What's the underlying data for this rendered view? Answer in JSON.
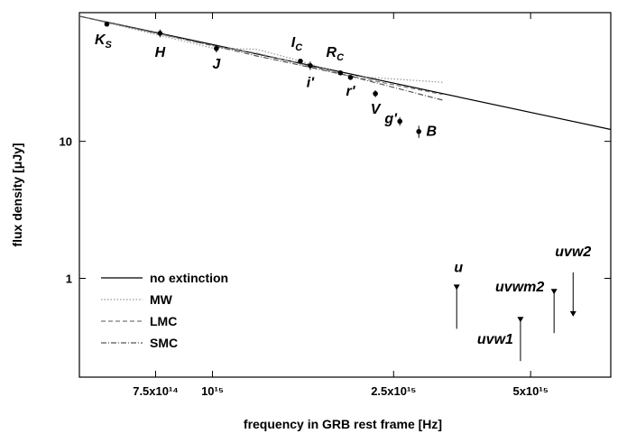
{
  "chart_data": {
    "type": "scatter",
    "xlabel": "frequency in GRB rest frame [Hz]",
    "ylabel": "flux density [μJy]",
    "xscale": "log",
    "yscale": "log",
    "xlim": [
      510000000000000.0,
      7500000000000000.0
    ],
    "ylim": [
      0.19,
      87
    ],
    "xticks": [
      {
        "value": 750000000000000.0,
        "label": "7.5x10¹⁴"
      },
      {
        "value": 1000000000000000.0,
        "label": "10¹⁵"
      },
      {
        "value": 2500000000000000.0,
        "label": "2.5x10¹⁵"
      },
      {
        "value": 5000000000000000.0,
        "label": "5x10¹⁵"
      }
    ],
    "yticks": [
      1,
      10
    ],
    "legend": "lower left",
    "points": {
      "labels": [
        {
          "text": "K",
          "sub": "S"
        },
        {
          "text": "H"
        },
        {
          "text": "J"
        },
        {
          "text": "I",
          "sub": "C"
        },
        {
          "text": "i'"
        },
        {
          "text": "R",
          "sub": "C"
        },
        {
          "text": "r'"
        },
        {
          "text": "V"
        },
        {
          "text": "g'"
        },
        {
          "text": "B"
        }
      ],
      "x": [
        586000000000000.0,
        767000000000000.0,
        1020000000000000.0,
        1560000000000000.0,
        1640000000000000.0,
        1910000000000000.0,
        2010000000000000.0,
        2280000000000000.0,
        2580000000000000.0,
        2840000000000000.0
      ],
      "values": [
        71.7,
        61.5,
        47.6,
        38.5,
        35.7,
        31.6,
        29.3,
        22.3,
        14.0,
        11.8
      ],
      "errors": [
        2.5,
        4,
        3,
        1.5,
        2.5,
        1,
        1.2,
        1.3,
        1,
        1.2
      ],
      "color": "#000000"
    },
    "upper_limits": {
      "labels": [
        "u",
        "uvw1",
        "uvwm2",
        "uvw2"
      ],
      "x": [
        3440000000000000.0,
        4750000000000000.0,
        5630000000000000.0,
        6200000000000000.0
      ],
      "values": [
        0.86,
        0.5,
        0.8,
        0.55
      ],
      "color": "#000000"
    },
    "series": [
      {
        "name": "no extinction",
        "color": "#000000",
        "dash": "",
        "x": [
          510000000000000.0,
          7500000000000000.0
        ],
        "values": [
          82,
          12.2
        ]
      },
      {
        "name": "MW",
        "color": "#999999",
        "dash": "1.5,2",
        "x": [
          510000000000000.0,
          1000000000000000.0,
          1250000000000000.0,
          1500000000000000.0,
          2000000000000000.0,
          3200000000000000.0
        ],
        "values": [
          82,
          48,
          47,
          40,
          30,
          27
        ]
      },
      {
        "name": "LMC",
        "color": "#777777",
        "dash": "5,3",
        "x": [
          510000000000000.0,
          1000000000000000.0,
          1250000000000000.0,
          1500000000000000.0,
          2000000000000000.0,
          3200000000000000.0
        ],
        "values": [
          82,
          50,
          44,
          38,
          30,
          22
        ]
      },
      {
        "name": "SMC",
        "color": "#555555",
        "dash": "6,2,1,2",
        "x": [
          510000000000000.0,
          1000000000000000.0,
          1250000000000000.0,
          1500000000000000.0,
          2000000000000000.0,
          3200000000000000.0
        ],
        "values": [
          82,
          50,
          42,
          37,
          30,
          20
        ]
      }
    ]
  }
}
